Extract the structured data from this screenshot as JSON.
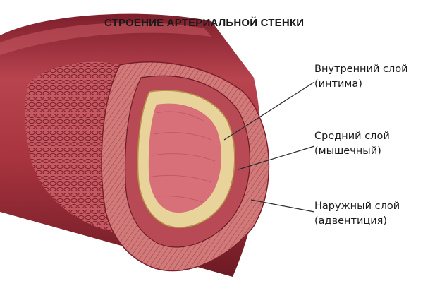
{
  "title": "СТРОЕНИЕ АРТЕРИАЛЬНОЙ СТЕНКИ",
  "layers": [
    {
      "name": "Внутренний слой",
      "note": "(интима)"
    },
    {
      "name": "Средний слой",
      "note": "(мышечный)"
    },
    {
      "name": "Наружный слой",
      "note": "(адвентиция)"
    }
  ],
  "colors": {
    "adventitia": "#a8343f",
    "media": "#c9615e",
    "intima": "#e8d49a",
    "lumen": "#d8707a",
    "background": "#ffffff"
  }
}
